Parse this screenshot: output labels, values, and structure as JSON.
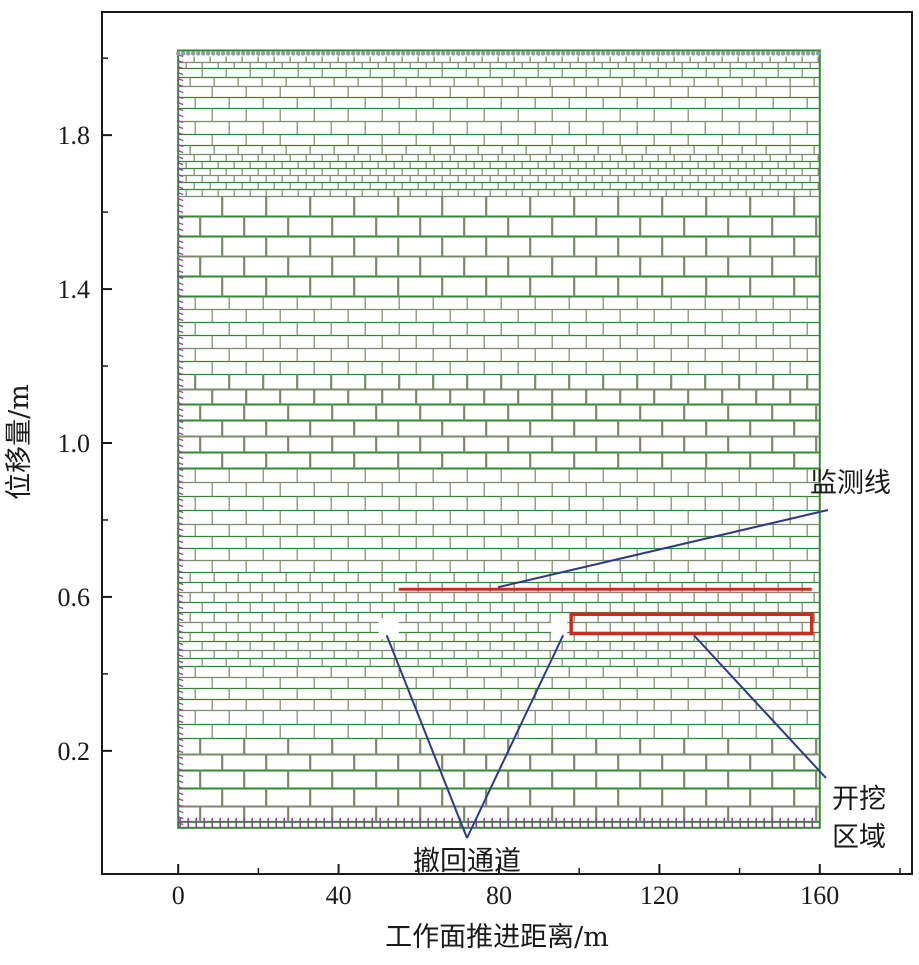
{
  "chart_data": {
    "type": "diagram",
    "xlabel": "工作面推进距离/m",
    "ylabel": "位移量/m",
    "x_ticks": [
      0,
      40,
      80,
      120,
      160
    ],
    "y_ticks": [
      0.2,
      0.6,
      1.0,
      1.4,
      1.8
    ],
    "xlim": [
      -19,
      183
    ],
    "ylim": [
      -0.12,
      2.12
    ],
    "model_extent": {
      "x": [
        0,
        160
      ],
      "y": [
        0,
        2.02
      ]
    },
    "monitoring_line": {
      "x": [
        55,
        158
      ],
      "y": 0.62
    },
    "excavation_zone": {
      "x": [
        98,
        158
      ],
      "y": [
        0.505,
        0.555
      ]
    },
    "retreat_channels": [
      {
        "x": [
          50,
          55
        ],
        "y": [
          0.49,
          0.545
        ]
      },
      {
        "x": [
          93,
          97
        ],
        "y": [
          0.49,
          0.545
        ]
      }
    ],
    "annotations": {
      "monitoring_line": "监测线",
      "excavation_line1": "开挖",
      "excavation_line2": "区域",
      "retreat_channel": "撤回通道"
    },
    "colors": {
      "block_edge": "#2f8a2f",
      "block_edge_alt": "#7a8a6a",
      "boundary": "#9b3fa8",
      "highlight": "#cc2b1e",
      "leader": "#2d3a8a",
      "axis": "#1a1a1a"
    }
  }
}
